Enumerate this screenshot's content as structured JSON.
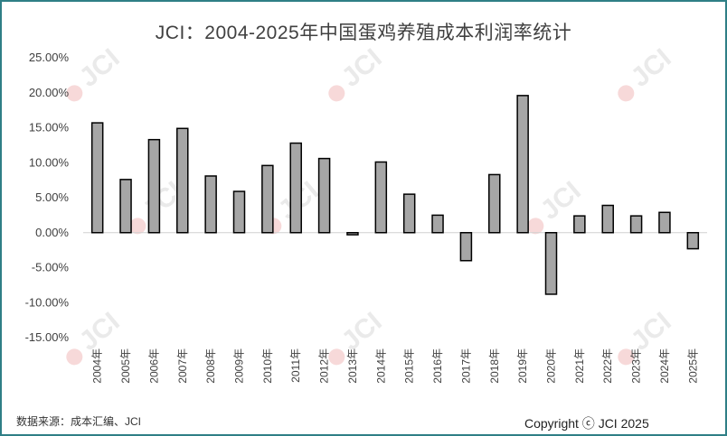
{
  "chart_data": {
    "type": "bar",
    "title": "JCI：2004-2025年中国蛋鸡养殖成本利润率统计",
    "categories": [
      "2004年",
      "2005年",
      "2006年",
      "2007年",
      "2008年",
      "2009年",
      "2010年",
      "2011年",
      "2012年",
      "2013年",
      "2014年",
      "2015年",
      "2016年",
      "2017年",
      "2018年",
      "2019年",
      "2020年",
      "2021年",
      "2022年",
      "2023年",
      "2024年",
      "2025年"
    ],
    "values": [
      15.7,
      7.6,
      13.3,
      14.9,
      8.1,
      5.9,
      9.6,
      12.8,
      10.6,
      -0.3,
      10.1,
      5.5,
      2.5,
      -4.0,
      8.3,
      19.6,
      -8.8,
      2.4,
      3.9,
      2.4,
      2.9,
      -2.3
    ],
    "yticks": [
      "25.00%",
      "20.00%",
      "15.00%",
      "10.00%",
      "5.00%",
      "0.00%",
      "-5.00%",
      "-10.00%",
      "-15.00%"
    ],
    "ylim": [
      -15,
      25
    ],
    "xlabel": "",
    "ylabel": "",
    "grid": false,
    "bar_color": "#a6a6a6",
    "bar_edge_color": "#000000"
  },
  "watermark": "JCI",
  "footer": {
    "source": "数据来源：成本汇编、JCI",
    "copyright": "Copyright ⓒ JCI 2025"
  },
  "colors": {
    "frame": "#2f7f86"
  }
}
